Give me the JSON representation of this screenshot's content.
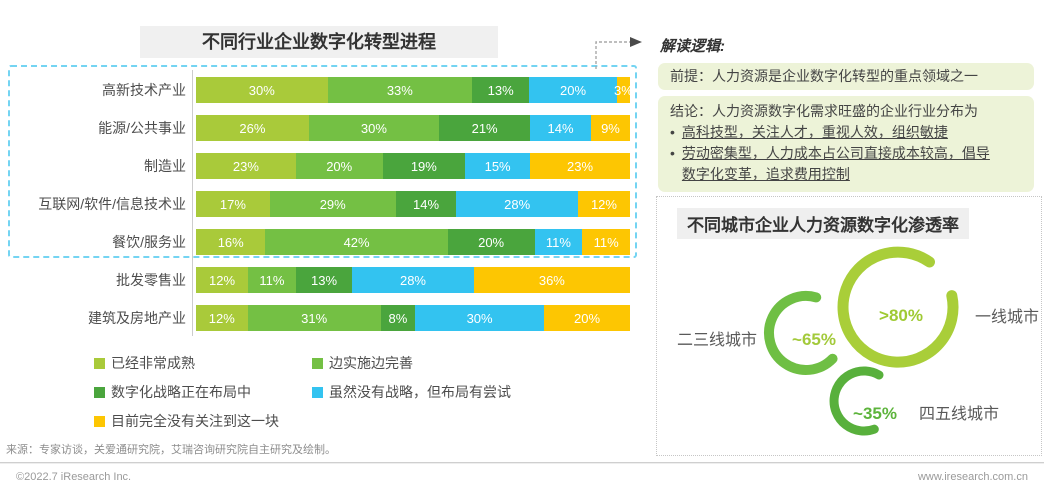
{
  "left_chart": {
    "title": "不同行业企业数字化转型进程",
    "unit": "%"
  },
  "interpretation": {
    "heading": "解读逻辑:",
    "premise": "前提：人力资源是企业数字化转型的重点领域之一",
    "conclusion_heading": "结论：人力资源数字化需求旺盛的企业行业分布为",
    "bullets": [
      "高科技型，关注人才，重视人效，组织敏捷",
      "劳动密集型，人力成本占公司直接成本较高，倡导数字化变革，追求费用控制"
    ]
  },
  "city_chart": {
    "title": "不同城市企业人力资源数字化渗透率",
    "rings": [
      {
        "label": "一线城市",
        "value": ">80%",
        "color": "#a9ce39"
      },
      {
        "label": "二三线城市",
        "value": "~65%",
        "color": "#6fbf44"
      },
      {
        "label": "四五线城市",
        "value": "~35%",
        "color": "#58b03c"
      }
    ]
  },
  "source_note": "来源：专家访谈，关爱通研究院，艾瑞咨询研究院自主研究及绘制。",
  "footer": {
    "copyright": "©2022.7 iResearch Inc.",
    "website": "www.iresearch.com.cn"
  },
  "chart_data": [
    {
      "type": "bar",
      "orientation": "horizontal",
      "stacked": true,
      "title": "不同行业企业数字化转型进程",
      "unit": "%",
      "xlim": [
        0,
        100
      ],
      "grid": false,
      "value_labels": true,
      "categories": [
        "高新技术产业",
        "能源/公共事业",
        "制造业",
        "互联网/软件/信息技术业",
        "餐饮/服务业",
        "批发零售业",
        "建筑及房地产业"
      ],
      "series": [
        {
          "name": "已经非常成熟",
          "color": "#a9ca3a",
          "values": [
            30,
            26,
            23,
            17,
            16,
            12,
            12
          ]
        },
        {
          "name": "边实施边完善",
          "color": "#74c044",
          "values": [
            33,
            30,
            20,
            29,
            42,
            11,
            31
          ]
        },
        {
          "name": "数字化战略正在布局中",
          "color": "#4aa53d",
          "values": [
            13,
            21,
            19,
            14,
            20,
            13,
            8
          ]
        },
        {
          "name": "虽然没有战略，但布局有尝试",
          "color": "#33c3f0",
          "values": [
            20,
            14,
            15,
            28,
            11,
            28,
            30
          ]
        },
        {
          "name": "目前完全没有关注到这一块",
          "color": "#fdc602",
          "values": [
            3,
            9,
            23,
            12,
            11,
            36,
            20
          ]
        }
      ],
      "highlighted_rows": [
        "高新技术产业",
        "能源/公共事业",
        "制造业",
        "互联网/软件/信息技术业",
        "餐饮/服务业"
      ],
      "legend_position": "bottom"
    },
    {
      "type": "pie",
      "subtype": "donut-rings",
      "title": "不同城市企业人力资源数字化渗透率",
      "unit": "%",
      "points": [
        {
          "label": "一线城市",
          "value": 80,
          "value_text": ">80%",
          "color": "#a9ce39"
        },
        {
          "label": "二三线城市",
          "value": 65,
          "value_text": "~65%",
          "color": "#6fbf44"
        },
        {
          "label": "四五线城市",
          "value": 35,
          "value_text": "~35%",
          "color": "#58b03c"
        }
      ]
    }
  ]
}
